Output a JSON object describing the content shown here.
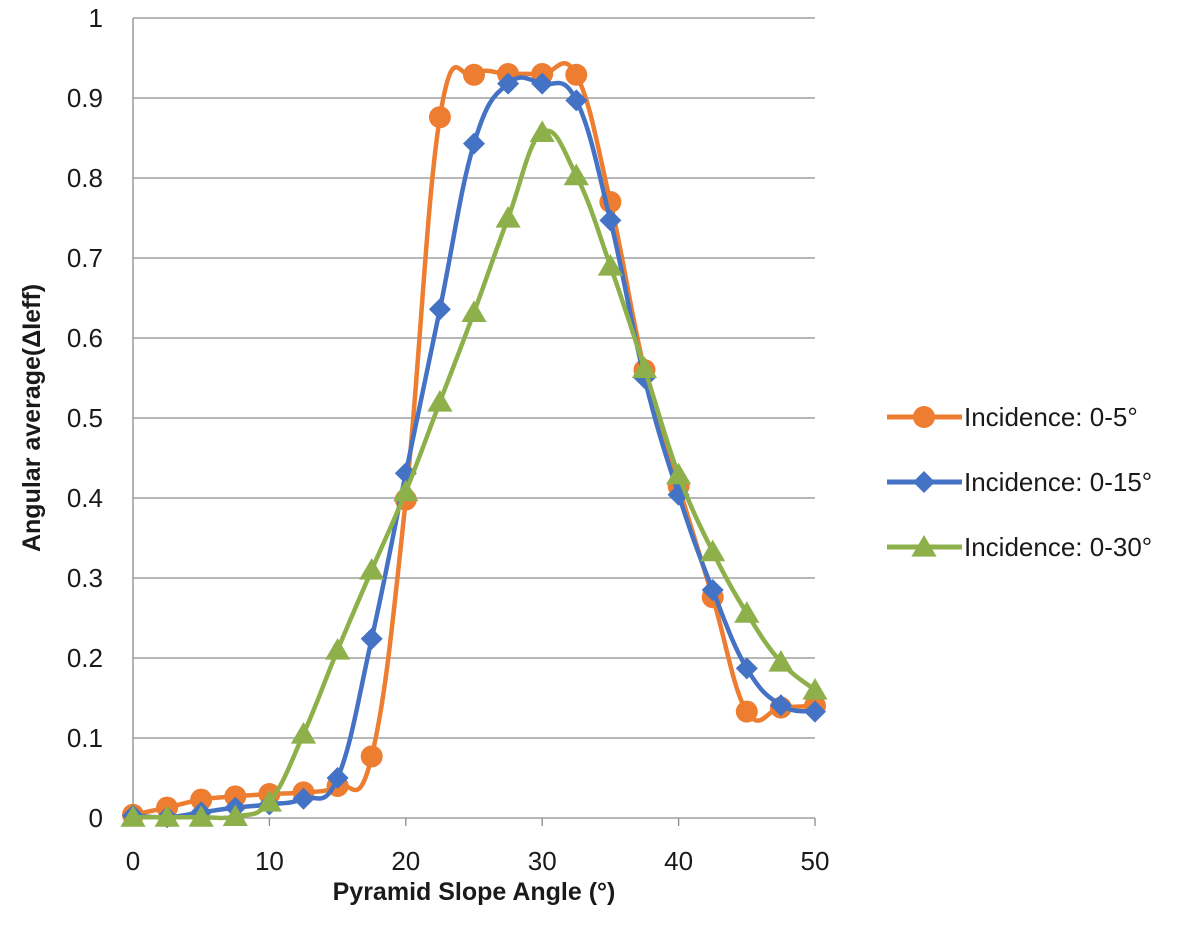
{
  "chart_data": {
    "type": "line",
    "title": "",
    "xlabel": "Pyramid Slope Angle (°)",
    "ylabel": "Angular average(ΔIeff)",
    "xlim": [
      0,
      50
    ],
    "ylim": [
      0,
      1
    ],
    "x_ticks": [
      "0",
      "10",
      "20",
      "30",
      "40",
      "50"
    ],
    "y_ticks": [
      "0",
      "0.1",
      "0.2",
      "0.3",
      "0.4",
      "0.5",
      "0.6",
      "0.7",
      "0.8",
      "0.9",
      "1"
    ],
    "grid": "horizontal",
    "legend_position": "right",
    "x": [
      0,
      2.5,
      5,
      7.5,
      10,
      12.5,
      15,
      17.5,
      20,
      22.5,
      25,
      27.5,
      30,
      32.5,
      35,
      37.5,
      40,
      42.5,
      45,
      47.5,
      50
    ],
    "series": [
      {
        "name": "Incidence: 0-5°",
        "color": "#ED7D31",
        "marker": "circle",
        "values": [
          0.004,
          0.013,
          0.023,
          0.027,
          0.03,
          0.032,
          0.04,
          0.077,
          0.398,
          0.876,
          0.929,
          0.93,
          0.93,
          0.929,
          0.77,
          0.56,
          0.415,
          0.276,
          0.133,
          0.138,
          0.14
        ]
      },
      {
        "name": "Incidence: 0-15°",
        "color": "#4472C4",
        "marker": "diamond",
        "values": [
          0.003,
          0.001,
          0.007,
          0.013,
          0.017,
          0.024,
          0.05,
          0.224,
          0.431,
          0.636,
          0.843,
          0.918,
          0.918,
          0.897,
          0.747,
          0.55,
          0.404,
          0.285,
          0.187,
          0.141,
          0.133
        ]
      },
      {
        "name": "Incidence: 0-30°",
        "color": "#8DB04A",
        "marker": "triangle",
        "values": [
          0.001,
          0.001,
          0.001,
          0.002,
          0.02,
          0.105,
          0.21,
          0.31,
          0.408,
          0.52,
          0.632,
          0.75,
          0.857,
          0.803,
          0.69,
          0.562,
          0.429,
          0.333,
          0.256,
          0.195,
          0.16
        ]
      }
    ]
  }
}
